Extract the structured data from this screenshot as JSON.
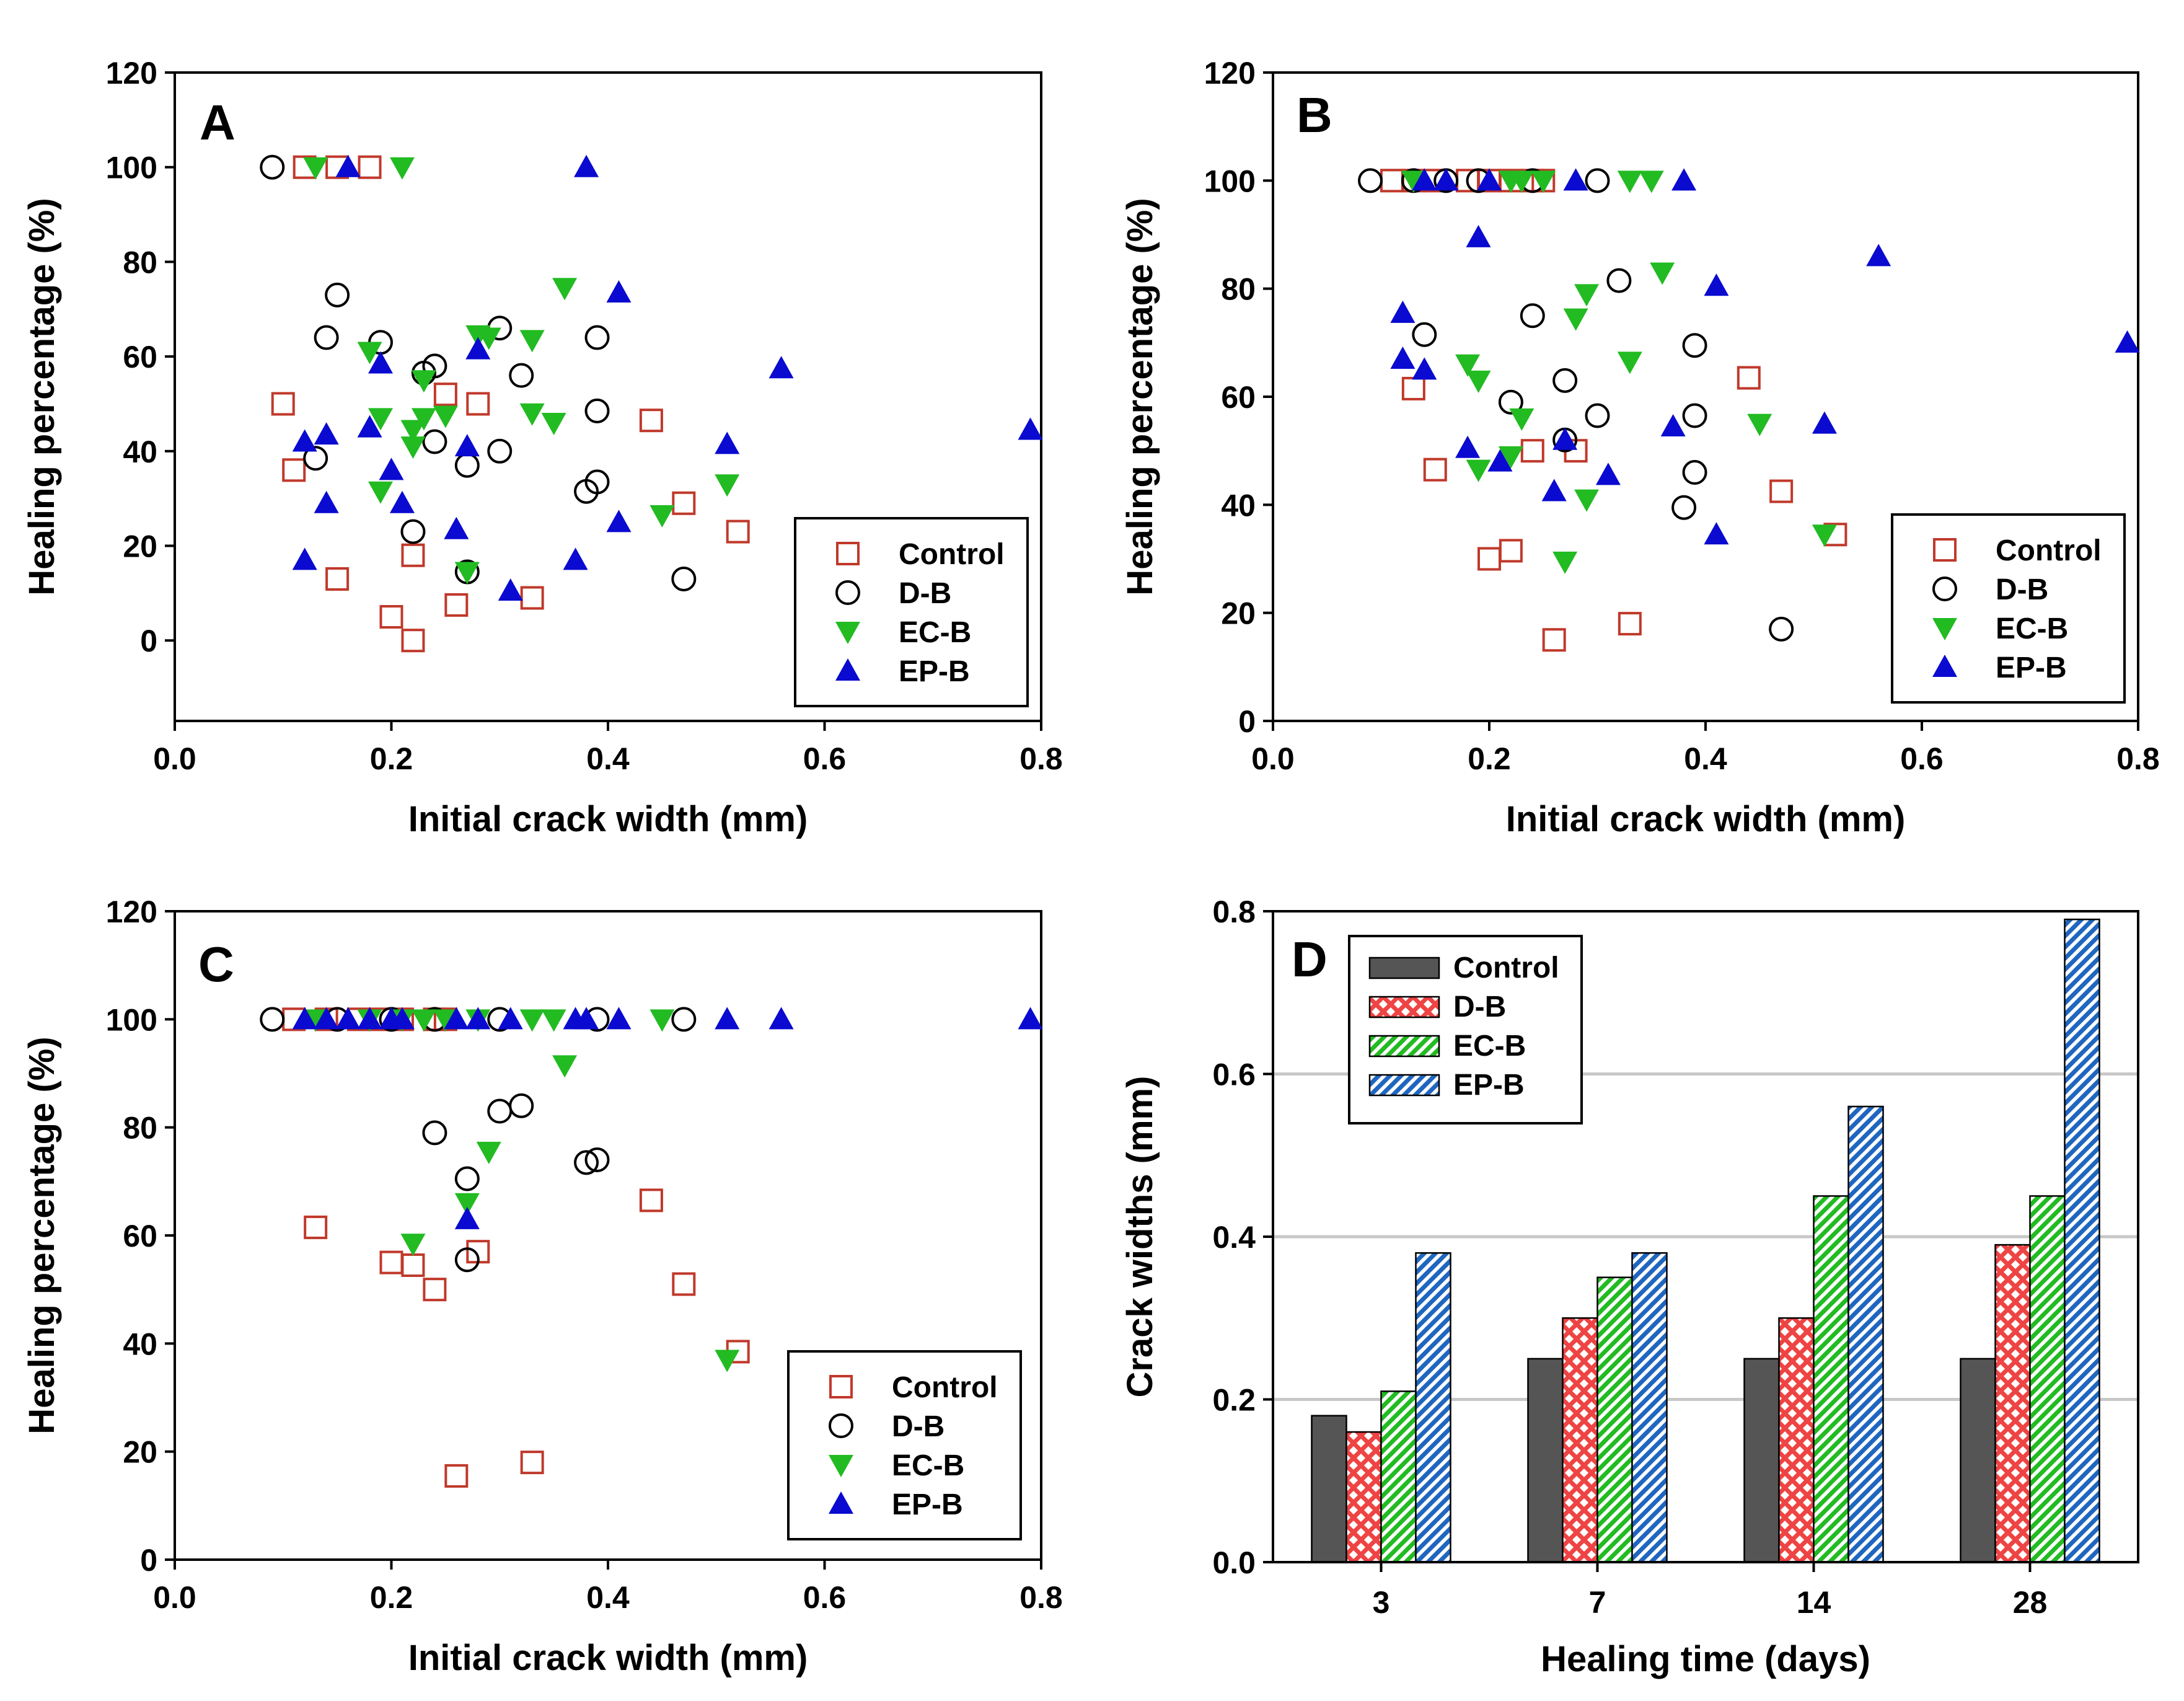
{
  "chart_data": [
    {
      "panel": "A",
      "type": "scatter",
      "title": "",
      "xlabel": "Initial crack width (mm)",
      "ylabel": "Healing percentage (%)",
      "xlim": [
        0,
        0.8
      ],
      "ylim": [
        -17,
        120
      ],
      "xticks": [
        "0.0",
        "0.2",
        "0.4",
        "0.6",
        "0.8"
      ],
      "yticks": [
        "0",
        "20",
        "40",
        "60",
        "80",
        "100",
        "120"
      ],
      "legend": [
        "Control",
        "D-B",
        "EC-B",
        "EP-B"
      ],
      "series": [
        {
          "name": "Control",
          "marker": "square",
          "color": "#c0392b",
          "points": [
            [
              0.12,
              100
            ],
            [
              0.15,
              100
            ],
            [
              0.18,
              100
            ],
            [
              0.1,
              50
            ],
            [
              0.11,
              36
            ],
            [
              0.15,
              13
            ],
            [
              0.2,
              5
            ],
            [
              0.22,
              0
            ],
            [
              0.22,
              18
            ],
            [
              0.25,
              52
            ],
            [
              0.28,
              50
            ],
            [
              0.26,
              7.5
            ],
            [
              0.33,
              9
            ],
            [
              0.44,
              46.5
            ],
            [
              0.47,
              29
            ],
            [
              0.52,
              23
            ]
          ]
        },
        {
          "name": "D-B",
          "marker": "circle",
          "color": "#000000",
          "points": [
            [
              0.09,
              100
            ],
            [
              0.15,
              73
            ],
            [
              0.14,
              64
            ],
            [
              0.13,
              38.5
            ],
            [
              0.19,
              63
            ],
            [
              0.23,
              56.5
            ],
            [
              0.24,
              58
            ],
            [
              0.24,
              42
            ],
            [
              0.22,
              23
            ],
            [
              0.27,
              37
            ],
            [
              0.27,
              14.5
            ],
            [
              0.3,
              66
            ],
            [
              0.3,
              40
            ],
            [
              0.32,
              56
            ],
            [
              0.39,
              64
            ],
            [
              0.39,
              48.5
            ],
            [
              0.39,
              33.5
            ],
            [
              0.38,
              31.5
            ],
            [
              0.47,
              13
            ]
          ]
        },
        {
          "name": "EC-B",
          "marker": "triangle-down",
          "color": "#22bb22",
          "points": [
            [
              0.13,
              100
            ],
            [
              0.21,
              100
            ],
            [
              0.18,
              61
            ],
            [
              0.19,
              47
            ],
            [
              0.19,
              31.5
            ],
            [
              0.22,
              41
            ],
            [
              0.22,
              44.5
            ],
            [
              0.23,
              47
            ],
            [
              0.23,
              55
            ],
            [
              0.25,
              47.5
            ],
            [
              0.27,
              14.5
            ],
            [
              0.28,
              64.5
            ],
            [
              0.29,
              64
            ],
            [
              0.33,
              63.5
            ],
            [
              0.33,
              48
            ],
            [
              0.35,
              46
            ],
            [
              0.36,
              74.5
            ],
            [
              0.45,
              26.5
            ],
            [
              0.51,
              33
            ]
          ]
        },
        {
          "name": "EP-B",
          "marker": "triangle-up",
          "color": "#0a0ad0",
          "points": [
            [
              0.16,
              100
            ],
            [
              0.38,
              100
            ],
            [
              0.12,
              17
            ],
            [
              0.12,
              42
            ],
            [
              0.14,
              43.5
            ],
            [
              0.14,
              29
            ],
            [
              0.18,
              45
            ],
            [
              0.19,
              58.5
            ],
            [
              0.2,
              36
            ],
            [
              0.21,
              29
            ],
            [
              0.26,
              23.5
            ],
            [
              0.27,
              41
            ],
            [
              0.28,
              61.5
            ],
            [
              0.31,
              10.5
            ],
            [
              0.37,
              17
            ],
            [
              0.41,
              73.5
            ],
            [
              0.41,
              25
            ],
            [
              0.51,
              41.5
            ],
            [
              0.56,
              57.5
            ],
            [
              0.79,
              44.5
            ]
          ]
        }
      ]
    },
    {
      "panel": "B",
      "type": "scatter",
      "title": "",
      "xlabel": "Initial crack width (mm)",
      "ylabel": "Healing percentage (%)",
      "xlim": [
        0,
        0.8
      ],
      "ylim": [
        0,
        120
      ],
      "xticks": [
        "0.0",
        "0.2",
        "0.4",
        "0.6",
        "0.8"
      ],
      "yticks": [
        "0",
        "20",
        "40",
        "60",
        "80",
        "100",
        "120"
      ],
      "legend": [
        "Control",
        "D-B",
        "EC-B",
        "EP-B"
      ],
      "series": [
        {
          "name": "Control",
          "marker": "square",
          "color": "#c0392b",
          "points": [
            [
              0.11,
              100
            ],
            [
              0.13,
              100
            ],
            [
              0.15,
              100
            ],
            [
              0.18,
              100
            ],
            [
              0.2,
              100
            ],
            [
              0.22,
              100
            ],
            [
              0.24,
              100
            ],
            [
              0.25,
              100
            ],
            [
              0.13,
              61.5
            ],
            [
              0.15,
              46.5
            ],
            [
              0.2,
              30
            ],
            [
              0.22,
              31.5
            ],
            [
              0.24,
              50
            ],
            [
              0.28,
              50
            ],
            [
              0.26,
              15
            ],
            [
              0.33,
              18
            ],
            [
              0.44,
              63.5
            ],
            [
              0.47,
              42.5
            ],
            [
              0.52,
              34.5
            ]
          ]
        },
        {
          "name": "D-B",
          "marker": "circle",
          "color": "#000000",
          "points": [
            [
              0.09,
              100
            ],
            [
              0.13,
              100
            ],
            [
              0.16,
              100
            ],
            [
              0.19,
              100
            ],
            [
              0.24,
              100
            ],
            [
              0.3,
              100
            ],
            [
              0.14,
              71.5
            ],
            [
              0.22,
              59
            ],
            [
              0.24,
              75
            ],
            [
              0.27,
              63
            ],
            [
              0.27,
              52
            ],
            [
              0.3,
              56.5
            ],
            [
              0.32,
              81.5
            ],
            [
              0.38,
              39.5
            ],
            [
              0.39,
              69.5
            ],
            [
              0.39,
              56.5
            ],
            [
              0.39,
              46
            ],
            [
              0.47,
              17
            ]
          ]
        },
        {
          "name": "EC-B",
          "marker": "triangle-down",
          "color": "#22bb22",
          "points": [
            [
              0.13,
              100
            ],
            [
              0.22,
              100
            ],
            [
              0.23,
              100
            ],
            [
              0.25,
              100
            ],
            [
              0.33,
              100
            ],
            [
              0.35,
              100
            ],
            [
              0.18,
              66
            ],
            [
              0.19,
              63
            ],
            [
              0.19,
              46.5
            ],
            [
              0.22,
              49
            ],
            [
              0.23,
              56
            ],
            [
              0.27,
              29.5
            ],
            [
              0.28,
              74.5
            ],
            [
              0.29,
              79
            ],
            [
              0.29,
              41
            ],
            [
              0.33,
              66.5
            ],
            [
              0.36,
              83
            ],
            [
              0.45,
              55
            ],
            [
              0.51,
              34.5
            ]
          ]
        },
        {
          "name": "EP-B",
          "marker": "triangle-up",
          "color": "#0a0ad0",
          "points": [
            [
              0.14,
              100
            ],
            [
              0.16,
              100
            ],
            [
              0.2,
              100
            ],
            [
              0.28,
              100
            ],
            [
              0.38,
              100
            ],
            [
              0.12,
              75.5
            ],
            [
              0.12,
              67
            ],
            [
              0.14,
              65
            ],
            [
              0.19,
              89.5
            ],
            [
              0.18,
              50.5
            ],
            [
              0.21,
              48
            ],
            [
              0.26,
              42.5
            ],
            [
              0.27,
              52
            ],
            [
              0.31,
              45.5
            ],
            [
              0.37,
              54.5
            ],
            [
              0.41,
              80.5
            ],
            [
              0.41,
              34.5
            ],
            [
              0.51,
              55
            ],
            [
              0.56,
              86
            ],
            [
              0.79,
              70
            ]
          ]
        }
      ]
    },
    {
      "panel": "C",
      "type": "scatter",
      "title": "",
      "xlabel": "Initial crack width (mm)",
      "ylabel": "Healing percentage (%)",
      "xlim": [
        0,
        0.8
      ],
      "ylim": [
        0,
        120
      ],
      "xticks": [
        "0.0",
        "0.2",
        "0.4",
        "0.6",
        "0.8"
      ],
      "yticks": [
        "0",
        "20",
        "40",
        "60",
        "80",
        "100",
        "120"
      ],
      "legend": [
        "Control",
        "D-B",
        "EC-B",
        "EP-B"
      ],
      "series": [
        {
          "name": "Control",
          "marker": "square",
          "color": "#c0392b",
          "points": [
            [
              0.11,
              100
            ],
            [
              0.14,
              100
            ],
            [
              0.17,
              100
            ],
            [
              0.19,
              100
            ],
            [
              0.21,
              100
            ],
            [
              0.24,
              100
            ],
            [
              0.25,
              100
            ],
            [
              0.13,
              61.5
            ],
            [
              0.2,
              55
            ],
            [
              0.22,
              54.5
            ],
            [
              0.24,
              50
            ],
            [
              0.28,
              57
            ],
            [
              0.26,
              15.5
            ],
            [
              0.33,
              18
            ],
            [
              0.44,
              66.5
            ],
            [
              0.47,
              51
            ],
            [
              0.52,
              38.5
            ]
          ]
        },
        {
          "name": "D-B",
          "marker": "circle",
          "color": "#000000",
          "points": [
            [
              0.09,
              100
            ],
            [
              0.15,
              100
            ],
            [
              0.2,
              100
            ],
            [
              0.24,
              100
            ],
            [
              0.3,
              100
            ],
            [
              0.39,
              100
            ],
            [
              0.47,
              100
            ],
            [
              0.24,
              79
            ],
            [
              0.27,
              70.5
            ],
            [
              0.27,
              55.5
            ],
            [
              0.3,
              83
            ],
            [
              0.32,
              84
            ],
            [
              0.38,
              73.5
            ],
            [
              0.39,
              74
            ]
          ]
        },
        {
          "name": "EC-B",
          "marker": "triangle-down",
          "color": "#22bb22",
          "points": [
            [
              0.13,
              100
            ],
            [
              0.18,
              100
            ],
            [
              0.21,
              100
            ],
            [
              0.23,
              100
            ],
            [
              0.25,
              100
            ],
            [
              0.28,
              100
            ],
            [
              0.33,
              100
            ],
            [
              0.35,
              100
            ],
            [
              0.45,
              100
            ],
            [
              0.22,
              58.5
            ],
            [
              0.27,
              66
            ],
            [
              0.29,
              75.5
            ],
            [
              0.36,
              91.5
            ],
            [
              0.51,
              37
            ]
          ]
        },
        {
          "name": "EP-B",
          "marker": "triangle-up",
          "color": "#0a0ad0",
          "points": [
            [
              0.12,
              100
            ],
            [
              0.14,
              100
            ],
            [
              0.16,
              100
            ],
            [
              0.18,
              100
            ],
            [
              0.2,
              100
            ],
            [
              0.21,
              100
            ],
            [
              0.26,
              100
            ],
            [
              0.28,
              100
            ],
            [
              0.31,
              100
            ],
            [
              0.37,
              100
            ],
            [
              0.38,
              100
            ],
            [
              0.41,
              100
            ],
            [
              0.51,
              100
            ],
            [
              0.56,
              100
            ],
            [
              0.79,
              100
            ],
            [
              0.27,
              63
            ]
          ]
        }
      ]
    },
    {
      "panel": "D",
      "type": "bar",
      "title": "",
      "xlabel": "Healing time (days)",
      "ylabel": "Crack widths (mm)",
      "ylim": [
        0,
        0.8
      ],
      "yticks": [
        "0.0",
        "0.2",
        "0.4",
        "0.6",
        "0.8"
      ],
      "grid": true,
      "categories": [
        "3",
        "7",
        "14",
        "28"
      ],
      "series": [
        {
          "name": "Control",
          "pattern": "solid",
          "color": "#555555",
          "values": [
            0.18,
            0.25,
            0.25,
            0.25
          ]
        },
        {
          "name": "D-B",
          "pattern": "crosshatch",
          "color": "#ee4444",
          "values": [
            0.16,
            0.3,
            0.3,
            0.39
          ]
        },
        {
          "name": "EC-B",
          "pattern": "diagonal",
          "color": "#22bb22",
          "values": [
            0.21,
            0.35,
            0.45,
            0.45
          ]
        },
        {
          "name": "EP-B",
          "pattern": "diagonal",
          "color": "#1f66c0",
          "values": [
            0.38,
            0.38,
            0.56,
            0.79
          ]
        }
      ]
    }
  ]
}
